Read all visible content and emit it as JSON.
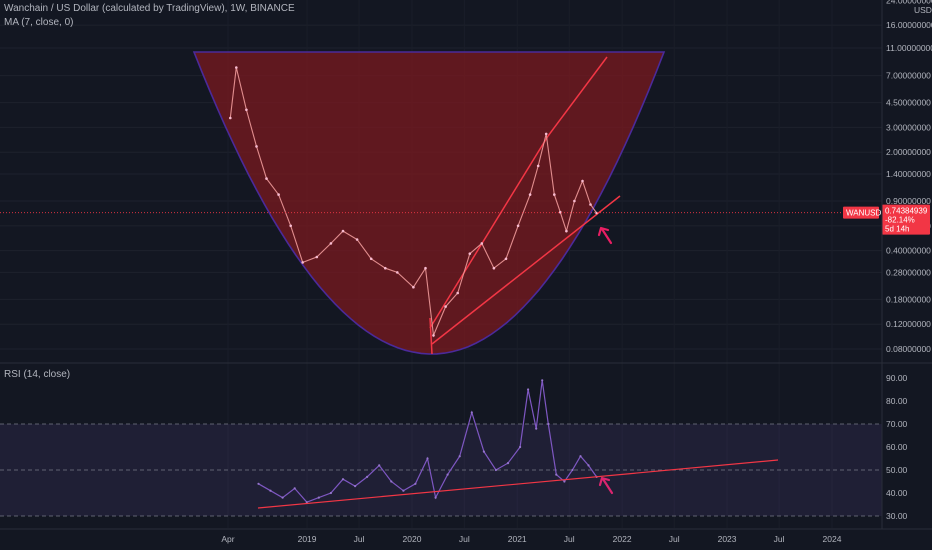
{
  "header": {
    "title_line": "Wanchain / US Dollar (calculated by TradingView), 1W, BINANCE",
    "ma_line": "MA (7, close, 0)"
  },
  "rsi_panel": {
    "label": "RSI (14, close)"
  },
  "price_badge": {
    "symbol": "WANUSD",
    "price": "0.74384939",
    "change": "-82.14%",
    "countdown": "5d 14h"
  },
  "colors": {
    "background": "#131722",
    "cup_fill": "#7b1a1f",
    "cup_edge": "#4b2a9a",
    "trend_line": "#f23645",
    "rsi_line": "#7e57c2",
    "rsi_band": "#7e57c2",
    "price_line": "#f23645",
    "badge": "#f23645",
    "arrow": "#e91e63"
  },
  "chart_data": [
    {
      "type": "line",
      "name": "price",
      "scale": "log",
      "y_ticks": [
        24,
        16,
        11,
        7,
        4.5,
        3,
        2,
        1.4,
        0.9,
        0.6,
        0.4,
        0.28,
        0.18,
        0.12,
        0.08
      ],
      "y_tick_labels": [
        "24.00000000",
        "16.00000000",
        "11.00000000",
        "7.00000000",
        "4.50000000",
        "3.00000000",
        "2.00000000",
        "1.40000000",
        "0.90000000",
        "0.60000000",
        "0.40000000",
        "0.28000000",
        "0.18000000",
        "0.12000000",
        "0.08000000"
      ],
      "y_unit_label": "USD",
      "x_tick_labels": [
        "Apr",
        "2019",
        "Jul",
        "2020",
        "Jul",
        "2021",
        "Jul",
        "2022",
        "Jul",
        "2023",
        "Jul",
        "2024"
      ],
      "x": [
        "2018-04-09",
        "2018-04-30",
        "2018-06-04",
        "2018-07-09",
        "2018-08-13",
        "2018-09-24",
        "2018-11-05",
        "2018-12-17",
        "2019-02-04",
        "2019-03-25",
        "2019-05-06",
        "2019-06-24",
        "2019-08-12",
        "2019-09-30",
        "2019-11-11",
        "2020-01-06",
        "2020-02-17",
        "2020-03-16",
        "2020-04-27",
        "2020-06-08",
        "2020-07-20",
        "2020-08-31",
        "2020-10-12",
        "2020-11-23",
        "2021-01-04",
        "2021-02-15",
        "2021-03-15",
        "2021-04-12",
        "2021-05-10",
        "2021-05-31",
        "2021-06-21",
        "2021-07-19",
        "2021-08-16",
        "2021-09-13",
        "2021-10-04"
      ],
      "values": [
        3.5,
        8.0,
        4.0,
        2.2,
        1.3,
        1.0,
        0.6,
        0.33,
        0.36,
        0.45,
        0.55,
        0.48,
        0.35,
        0.3,
        0.28,
        0.22,
        0.3,
        0.1,
        0.16,
        0.2,
        0.38,
        0.45,
        0.3,
        0.35,
        0.6,
        1.0,
        1.6,
        2.7,
        1.0,
        0.75,
        0.55,
        0.9,
        1.25,
        0.85,
        0.74
      ]
    },
    {
      "type": "line",
      "name": "RSI",
      "y_ticks": [
        90,
        80,
        70,
        60,
        50,
        40,
        30
      ],
      "y_tick_labels": [
        "90.00",
        "80.00",
        "70.00",
        "60.00",
        "50.00",
        "40.00",
        "30.00"
      ],
      "band": [
        30,
        70
      ],
      "midline": 50,
      "x": [
        "2018-07-16",
        "2018-08-27",
        "2018-10-08",
        "2018-11-19",
        "2018-12-31",
        "2019-02-11",
        "2019-03-25",
        "2019-05-06",
        "2019-06-17",
        "2019-07-29",
        "2019-09-09",
        "2019-10-21",
        "2019-12-02",
        "2020-01-13",
        "2020-02-24",
        "2020-03-23",
        "2020-05-04",
        "2020-06-15",
        "2020-07-27",
        "2020-09-07",
        "2020-10-19",
        "2020-11-30",
        "2021-01-11",
        "2021-02-08",
        "2021-03-08",
        "2021-03-29",
        "2021-04-19",
        "2021-05-17",
        "2021-06-14",
        "2021-07-12",
        "2021-08-09",
        "2021-09-06",
        "2021-10-04"
      ],
      "values": [
        44,
        41,
        38,
        42,
        36,
        38,
        40,
        46,
        43,
        47,
        52,
        45,
        41,
        44,
        55,
        38,
        48,
        56,
        75,
        58,
        50,
        53,
        60,
        85,
        68,
        89,
        70,
        48,
        45,
        50,
        56,
        52,
        47
      ]
    }
  ]
}
